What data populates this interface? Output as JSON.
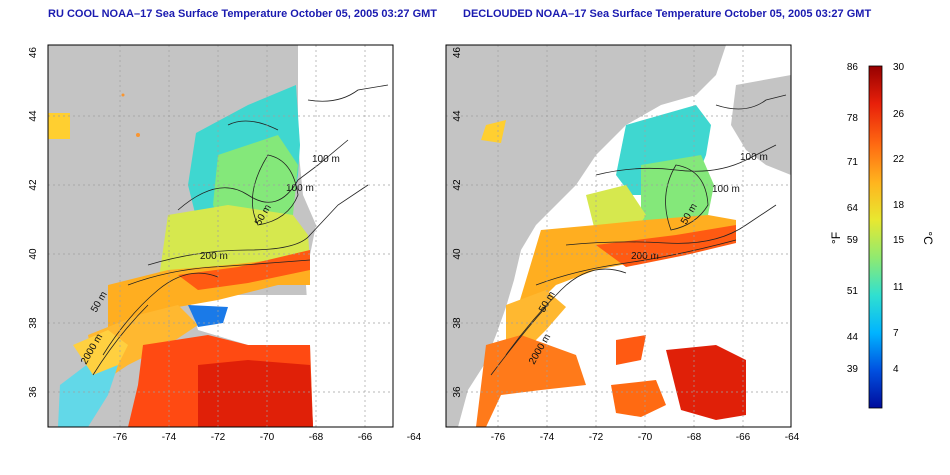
{
  "maps": [
    {
      "title": "RU COOL NOAA–17 Sea Surface Temperature October 05, 2005 03:27 GMT",
      "x_ticks": [
        "-76",
        "-74",
        "-72",
        "-70",
        "-68",
        "-66",
        "-64"
      ],
      "y_ticks": [
        "46",
        "44",
        "42",
        "40",
        "38",
        "36"
      ],
      "isobath_labels": [
        "100 m",
        "100 m",
        "50 m",
        "200 m",
        "50 m",
        "2000 m"
      ]
    },
    {
      "title": "DECLOUDED NOAA–17 Sea Surface Temperature October 05, 2005 03:27 GMT",
      "x_ticks": [
        "-76",
        "-74",
        "-72",
        "-70",
        "-68",
        "-66",
        "-64"
      ],
      "y_ticks": [
        "46",
        "44",
        "42",
        "40",
        "38",
        "36"
      ],
      "isobath_labels": [
        "100 m",
        "100 m",
        "50 m",
        "200 m",
        "50 m",
        "2000 m"
      ]
    }
  ],
  "colorbar": {
    "left_ticks": [
      "86",
      "78",
      "71",
      "64",
      "59",
      "51",
      "44",
      "39"
    ],
    "right_ticks": [
      "30",
      "26",
      "22",
      "18",
      "15",
      "11",
      "7",
      "4"
    ],
    "left_unit": "°F",
    "right_unit": "°C",
    "colors": [
      "#000c9c",
      "#0050e0",
      "#00b4ff",
      "#30e0d0",
      "#90ea70",
      "#e8e830",
      "#ffb41e",
      "#ff6a12",
      "#e8200a",
      "#960000"
    ]
  },
  "colors": {
    "land": "#c4c4c4",
    "title": "#1a1ab0",
    "grid": "#a0a0a0"
  }
}
